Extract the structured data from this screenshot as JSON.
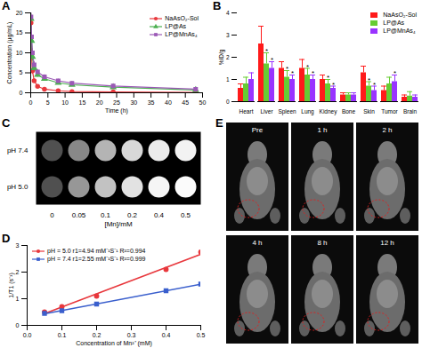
{
  "chart_data": [
    {
      "title": "A",
      "type": "line",
      "xlabel": "Time (h)",
      "ylabel": "Concentration (μg/mL)",
      "x": [
        0.083,
        0.25,
        0.5,
        1,
        2,
        4,
        8,
        12,
        24,
        48
      ],
      "xlim": [
        0,
        50
      ],
      "xticks": [
        0,
        5,
        10,
        15,
        20,
        25,
        30,
        35,
        40,
        45,
        50
      ],
      "ylim": [
        0,
        20
      ],
      "yticks": [
        0,
        5,
        10,
        15,
        20
      ],
      "legend": "top-right",
      "series": [
        {
          "name": "NaAsO₂-Sol",
          "color": "#e8383d",
          "marker": "circle",
          "values": [
            17.5,
            9.5,
            5.5,
            3.0,
            1.6,
            0.9,
            0.5,
            0.3,
            0.2,
            0.1
          ],
          "errors": [
            1.5,
            1.0,
            0.8,
            0.5,
            0.3,
            0.2,
            0.1,
            0.1,
            0.1,
            0.05
          ]
        },
        {
          "name": "LP@As",
          "color": "#4caf50",
          "marker": "triangle",
          "values": [
            18.5,
            13.0,
            9.0,
            6.2,
            4.5,
            3.5,
            2.5,
            2.0,
            1.4,
            0.7
          ],
          "errors": [
            1.2,
            1.0,
            1.0,
            0.8,
            0.6,
            0.5,
            0.4,
            0.3,
            0.3,
            0.2
          ]
        },
        {
          "name": "LP@MnAs₄",
          "color": "#9b59b6",
          "marker": "square",
          "values": [
            19.0,
            14.0,
            10.0,
            7.0,
            5.2,
            4.0,
            3.0,
            2.4,
            1.7,
            0.9
          ],
          "errors": [
            1.0,
            1.0,
            1.0,
            0.8,
            0.6,
            0.5,
            0.4,
            0.3,
            0.3,
            0.2
          ]
        }
      ]
    },
    {
      "title": "B",
      "type": "bar",
      "ylabel": "%ID/g",
      "categories": [
        "Heart",
        "Liver",
        "Spleen",
        "Lung",
        "Kidney",
        "Bone",
        "Skin",
        "Tumor",
        "Brain"
      ],
      "ylim": [
        0,
        4
      ],
      "yticks": [
        0,
        1,
        2,
        3,
        4
      ],
      "legend": "top-right",
      "series": [
        {
          "name": "NaAsO₂-Sol",
          "color": "#ff1a1a",
          "values": [
            0.6,
            2.6,
            1.5,
            1.5,
            1.0,
            0.3,
            1.3,
            0.5,
            0.2
          ],
          "errors": [
            0.2,
            0.8,
            0.3,
            0.4,
            0.2,
            0.1,
            0.3,
            0.2,
            0.1
          ]
        },
        {
          "name": "LP@As",
          "color": "#66cc33",
          "values": [
            0.8,
            1.7,
            1.1,
            1.2,
            0.8,
            0.3,
            0.7,
            0.8,
            0.25
          ],
          "errors": [
            0.3,
            0.5,
            0.3,
            0.3,
            0.2,
            0.1,
            0.2,
            0.3,
            0.2
          ]
        },
        {
          "name": "LP@MnAs₄",
          "color": "#9933ff",
          "values": [
            1.0,
            1.5,
            1.0,
            1.0,
            0.6,
            0.3,
            0.5,
            0.9,
            0.2
          ],
          "errors": [
            0.3,
            0.3,
            0.2,
            0.2,
            0.1,
            0.1,
            0.2,
            0.3,
            0.1
          ]
        }
      ],
      "annotations": [
        {
          "category": "Liver",
          "series": "LP@As",
          "text": "*"
        },
        {
          "category": "Liver",
          "series": "LP@MnAs₄",
          "text": "*"
        },
        {
          "category": "Spleen",
          "series": "LP@As",
          "text": "*"
        },
        {
          "category": "Spleen",
          "series": "LP@MnAs₄",
          "text": "*"
        },
        {
          "category": "Lung",
          "series": "LP@As",
          "text": "*"
        },
        {
          "category": "Lung",
          "series": "LP@MnAs₄",
          "text": "*"
        },
        {
          "category": "Kidney",
          "series": "LP@As",
          "text": "*"
        },
        {
          "category": "Kidney",
          "series": "LP@MnAs₄",
          "text": "*"
        },
        {
          "category": "Skin",
          "series": "LP@As",
          "text": "*"
        },
        {
          "category": "Skin",
          "series": "LP@MnAs₄",
          "text": "*"
        },
        {
          "category": "Tumor",
          "series": "LP@MnAs₄",
          "text": "*"
        }
      ]
    },
    {
      "title": "C",
      "type": "heatmap",
      "xlabel": "[Mn]/mM",
      "categories": [
        "0",
        "0.05",
        "0.1",
        "0.2",
        "0.4",
        "0.5"
      ],
      "rows": [
        "pH 7.4",
        "pH 5.0"
      ],
      "values": [
        [
          0.25,
          0.45,
          0.6,
          0.75,
          0.85,
          0.9
        ],
        [
          0.25,
          0.5,
          0.65,
          0.8,
          0.92,
          0.97
        ]
      ]
    },
    {
      "title": "D",
      "type": "scatter",
      "xlabel": "Concentration of Mn²⁺ (mM)",
      "ylabel": "1/T1 (s⁻¹)",
      "x": [
        0.05,
        0.1,
        0.2,
        0.4,
        0.5
      ],
      "xlim": [
        0,
        0.5
      ],
      "xticks": [
        {
          "value": 0,
          "label": "0.0"
        },
        0.1,
        0.2,
        0.3,
        0.4,
        0.5
      ],
      "ylim": [
        0,
        3
      ],
      "yticks": [
        0,
        1,
        2,
        3
      ],
      "legend": "top-left",
      "series": [
        {
          "name": "pH = 5.0  r1=4.94 mM⁻¹S⁻¹  R²=0.994",
          "color": "#e8383d",
          "marker": "circle",
          "values": [
            0.5,
            0.7,
            1.1,
            2.1,
            2.75
          ]
        },
        {
          "name": "pH = 7.4  r1=2.55 mM⁻¹S⁻¹  R²=0.999",
          "color": "#3a5fcd",
          "marker": "square",
          "values": [
            0.45,
            0.55,
            0.8,
            1.3,
            1.55
          ]
        }
      ]
    }
  ],
  "panel_E": {
    "label": "E",
    "images": [
      "Pre",
      "1 h",
      "2 h",
      "4 h",
      "8 h",
      "12 h"
    ]
  }
}
